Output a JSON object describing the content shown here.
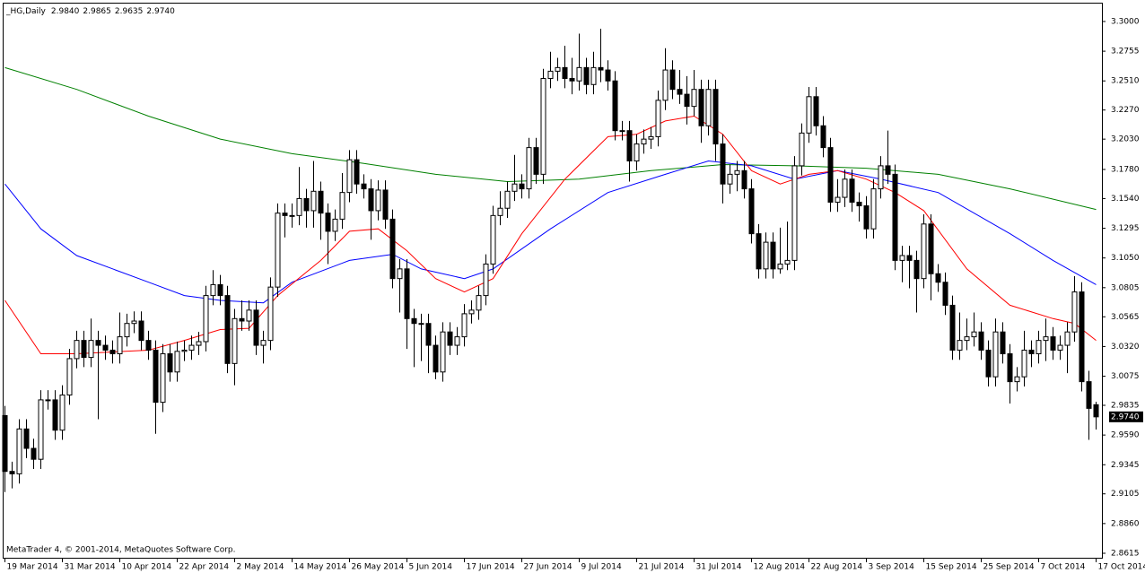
{
  "chart_data": {
    "type": "candlestick",
    "header": {
      "symbol": "_HG,Daily",
      "ohlc": [
        {
          "value": 2.984,
          "label": "2.9840"
        },
        {
          "value": 2.9865,
          "label": "2.9865"
        },
        {
          "value": 2.9635,
          "label": "2.9635"
        },
        {
          "value": 2.974,
          "label": "2.9740"
        }
      ]
    },
    "footer": "MetaTrader 4, © 2001-2014, MetaQuotes Software Corp.",
    "last_price": {
      "value": 2.974,
      "label": "2.9740"
    },
    "ylim": [
      2.8578,
      3.3155
    ],
    "yticks": [
      {
        "value": 3.3,
        "label": "3.3000"
      },
      {
        "value": 3.2755,
        "label": "3.2755"
      },
      {
        "value": 3.251,
        "label": "3.2510"
      },
      {
        "value": 3.227,
        "label": "3.2270"
      },
      {
        "value": 3.203,
        "label": "3.2030"
      },
      {
        "value": 3.178,
        "label": "3.1780"
      },
      {
        "value": 3.154,
        "label": "3.1540"
      },
      {
        "value": 3.1295,
        "label": "3.1295"
      },
      {
        "value": 3.105,
        "label": "3.1050"
      },
      {
        "value": 3.0805,
        "label": "3.0805"
      },
      {
        "value": 3.0565,
        "label": "3.0565"
      },
      {
        "value": 3.032,
        "label": "3.0320"
      },
      {
        "value": 3.0075,
        "label": "3.0075"
      },
      {
        "value": 2.9835,
        "label": "2.9835"
      },
      {
        "value": 2.959,
        "label": "2.9590"
      },
      {
        "value": 2.9345,
        "label": "2.9345"
      },
      {
        "value": 2.9105,
        "label": "2.9105"
      },
      {
        "value": 2.886,
        "label": "2.8860"
      },
      {
        "value": 2.8615,
        "label": "2.8615"
      }
    ],
    "up_color": "#ffffff",
    "down_color": "#000000",
    "outline_color": "#000000",
    "categories": [
      "19 Mar 2014",
      null,
      null,
      null,
      null,
      null,
      null,
      null,
      "31 Mar 2014",
      null,
      null,
      null,
      null,
      null,
      null,
      null,
      "10 Apr 2014",
      null,
      null,
      null,
      null,
      null,
      null,
      null,
      "22 Apr 2014",
      null,
      null,
      null,
      null,
      null,
      null,
      null,
      "2 May 2014",
      null,
      null,
      null,
      null,
      null,
      null,
      null,
      "14 May 2014",
      null,
      null,
      null,
      null,
      null,
      null,
      null,
      "26 May 2014",
      null,
      null,
      null,
      null,
      null,
      null,
      null,
      "5 Jun 2014",
      null,
      null,
      null,
      null,
      null,
      null,
      null,
      "17 Jun 2014",
      null,
      null,
      null,
      null,
      null,
      null,
      null,
      "27 Jun 2014",
      null,
      null,
      null,
      null,
      null,
      null,
      null,
      "9 Jul 2014",
      null,
      null,
      null,
      null,
      null,
      null,
      null,
      "21 Jul 2014",
      null,
      null,
      null,
      null,
      null,
      null,
      null,
      "31 Jul 2014",
      null,
      null,
      null,
      null,
      null,
      null,
      null,
      "12 Aug 2014",
      null,
      null,
      null,
      null,
      null,
      null,
      null,
      "22 Aug 2014",
      null,
      null,
      null,
      null,
      null,
      null,
      null,
      "3 Sep 2014",
      null,
      null,
      null,
      null,
      null,
      null,
      null,
      "15 Sep 2014",
      null,
      null,
      null,
      null,
      null,
      null,
      null,
      "25 Sep 2014",
      null,
      null,
      null,
      null,
      null,
      null,
      null,
      "7 Oct 2014",
      null,
      null,
      null,
      null,
      null,
      null,
      null,
      "17 Oct 2014"
    ],
    "open": [
      2.975,
      2.929,
      2.927,
      2.964,
      2.948,
      2.939,
      2.988,
      2.988,
      2.963,
      2.992,
      3.022,
      3.037,
      3.023,
      3.037,
      3.033,
      3.029,
      3.026,
      3.04,
      3.051,
      3.053,
      3.037,
      3.029,
      2.986,
      3.026,
      3.011,
      3.028,
      3.029,
      3.033,
      3.036,
      3.074,
      3.083,
      3.074,
      3.018,
      3.055,
      3.053,
      3.062,
      3.033,
      3.037,
      3.081,
      3.142,
      3.14,
      3.14,
      3.154,
      3.144,
      3.16,
      3.142,
      3.127,
      3.137,
      3.159,
      3.186,
      3.166,
      3.162,
      3.144,
      3.161,
      3.137,
      3.088,
      3.096,
      3.055,
      3.051,
      3.051,
      3.033,
      3.011,
      3.044,
      3.033,
      3.04,
      3.059,
      3.062,
      3.074,
      3.1,
      3.14,
      3.146,
      3.16,
      3.166,
      3.162,
      3.196,
      3.174,
      3.253,
      3.259,
      3.262,
      3.253,
      3.251,
      3.262,
      3.248,
      3.262,
      3.26,
      3.251,
      3.21,
      3.21,
      3.185,
      3.199,
      3.203,
      3.205,
      3.235,
      3.26,
      3.244,
      3.24,
      3.23,
      3.244,
      3.214,
      3.244,
      3.199,
      3.166,
      3.174,
      3.177,
      3.162,
      3.125,
      3.096,
      3.118,
      3.096,
      3.1,
      3.103,
      3.181,
      3.208,
      3.238,
      3.214,
      3.196,
      3.151,
      3.155,
      3.17,
      3.151,
      3.148,
      3.129,
      3.162,
      3.181,
      3.174,
      3.103,
      3.107,
      3.103,
      3.088,
      3.133,
      3.092,
      3.085,
      3.066,
      3.029,
      3.037,
      3.04,
      3.044,
      3.029,
      3.007,
      3.044,
      3.026,
      3.003,
      3.007,
      3.029,
      3.026,
      3.037,
      3.04,
      3.029,
      3.033,
      3.044,
      3.077,
      3.003,
      2.984
    ],
    "high": [
      2.983,
      2.937,
      2.972,
      2.972,
      2.956,
      2.996,
      2.996,
      2.996,
      3.0,
      3.03,
      3.045,
      3.045,
      3.055,
      3.045,
      3.041,
      3.037,
      3.06,
      3.059,
      3.061,
      3.061,
      3.045,
      3.037,
      3.034,
      3.034,
      3.036,
      3.037,
      3.041,
      3.044,
      3.082,
      3.095,
      3.091,
      3.082,
      3.063,
      3.07,
      3.07,
      3.07,
      3.045,
      3.089,
      3.15,
      3.15,
      3.15,
      3.18,
      3.162,
      3.185,
      3.168,
      3.15,
      3.145,
      3.175,
      3.194,
      3.194,
      3.174,
      3.17,
      3.169,
      3.169,
      3.145,
      3.104,
      3.104,
      3.063,
      3.059,
      3.059,
      3.041,
      3.052,
      3.052,
      3.048,
      3.067,
      3.07,
      3.082,
      3.108,
      3.148,
      3.16,
      3.168,
      3.19,
      3.174,
      3.204,
      3.204,
      3.261,
      3.275,
      3.27,
      3.28,
      3.27,
      3.29,
      3.27,
      3.275,
      3.294,
      3.268,
      3.259,
      3.218,
      3.218,
      3.207,
      3.211,
      3.213,
      3.243,
      3.278,
      3.268,
      3.26,
      3.255,
      3.26,
      3.252,
      3.252,
      3.252,
      3.207,
      3.182,
      3.185,
      3.185,
      3.17,
      3.133,
      3.126,
      3.126,
      3.13,
      3.135,
      3.189,
      3.216,
      3.246,
      3.246,
      3.222,
      3.204,
      3.17,
      3.178,
      3.178,
      3.159,
      3.156,
      3.17,
      3.189,
      3.21,
      3.182,
      3.115,
      3.115,
      3.111,
      3.141,
      3.141,
      3.1,
      3.093,
      3.074,
      3.06,
      3.055,
      3.06,
      3.052,
      3.037,
      3.055,
      3.052,
      3.034,
      3.015,
      3.045,
      3.037,
      3.045,
      3.055,
      3.048,
      3.041,
      3.052,
      3.09,
      3.085,
      3.012,
      2.9865
    ],
    "low": [
      2.912,
      2.915,
      2.919,
      2.94,
      2.931,
      2.931,
      2.98,
      2.955,
      2.955,
      2.984,
      3.014,
      3.015,
      3.015,
      2.972,
      3.021,
      3.018,
      3.018,
      3.032,
      3.043,
      3.029,
      3.021,
      2.96,
      2.978,
      3.003,
      3.003,
      3.02,
      3.021,
      3.025,
      3.028,
      3.066,
      3.066,
      3.01,
      3.0,
      3.045,
      3.045,
      3.025,
      3.018,
      3.029,
      3.073,
      3.122,
      3.13,
      3.132,
      3.13,
      3.13,
      3.12,
      3.1,
      3.119,
      3.129,
      3.151,
      3.158,
      3.154,
      3.12,
      3.136,
      3.129,
      3.08,
      3.06,
      3.03,
      3.015,
      3.02,
      3.01,
      3.005,
      3.003,
      3.025,
      3.025,
      3.032,
      3.051,
      3.054,
      3.066,
      3.092,
      3.132,
      3.138,
      3.152,
      3.154,
      3.154,
      3.166,
      3.166,
      3.245,
      3.251,
      3.245,
      3.24,
      3.243,
      3.24,
      3.24,
      3.25,
      3.243,
      3.202,
      3.202,
      3.168,
      3.177,
      3.191,
      3.195,
      3.197,
      3.227,
      3.236,
      3.232,
      3.215,
      3.222,
      3.2,
      3.206,
      3.185,
      3.15,
      3.158,
      3.16,
      3.154,
      3.117,
      3.088,
      3.088,
      3.088,
      3.092,
      3.095,
      3.095,
      3.173,
      3.2,
      3.206,
      3.188,
      3.143,
      3.143,
      3.147,
      3.143,
      3.135,
      3.121,
      3.121,
      3.154,
      3.166,
      3.095,
      3.085,
      3.08,
      3.06,
      3.08,
      3.07,
      3.077,
      3.058,
      3.021,
      3.021,
      3.029,
      3.032,
      3.021,
      2.999,
      2.999,
      3.018,
      2.985,
      2.995,
      2.999,
      3.015,
      3.018,
      3.02,
      3.021,
      3.021,
      3.01,
      3.036,
      2.995,
      2.955,
      2.9635
    ],
    "close": [
      2.929,
      2.927,
      2.964,
      2.948,
      2.939,
      2.988,
      2.988,
      2.963,
      2.992,
      3.022,
      3.037,
      3.023,
      3.037,
      3.033,
      3.029,
      3.026,
      3.04,
      3.051,
      3.053,
      3.037,
      3.029,
      2.986,
      3.026,
      3.011,
      3.028,
      3.029,
      3.033,
      3.036,
      3.074,
      3.083,
      3.074,
      3.018,
      3.055,
      3.053,
      3.062,
      3.033,
      3.037,
      3.081,
      3.142,
      3.14,
      3.14,
      3.154,
      3.144,
      3.16,
      3.142,
      3.127,
      3.137,
      3.159,
      3.186,
      3.166,
      3.162,
      3.144,
      3.161,
      3.137,
      3.088,
      3.096,
      3.055,
      3.051,
      3.051,
      3.033,
      3.011,
      3.044,
      3.033,
      3.04,
      3.059,
      3.062,
      3.074,
      3.1,
      3.14,
      3.146,
      3.16,
      3.166,
      3.162,
      3.196,
      3.174,
      3.253,
      3.259,
      3.262,
      3.253,
      3.251,
      3.262,
      3.248,
      3.262,
      3.26,
      3.251,
      3.21,
      3.21,
      3.185,
      3.199,
      3.203,
      3.205,
      3.235,
      3.26,
      3.244,
      3.24,
      3.23,
      3.244,
      3.214,
      3.244,
      3.199,
      3.166,
      3.174,
      3.177,
      3.162,
      3.125,
      3.096,
      3.118,
      3.096,
      3.1,
      3.103,
      3.181,
      3.208,
      3.238,
      3.214,
      3.196,
      3.151,
      3.155,
      3.17,
      3.151,
      3.148,
      3.129,
      3.162,
      3.181,
      3.174,
      3.103,
      3.107,
      3.103,
      3.088,
      3.133,
      3.092,
      3.085,
      3.066,
      3.029,
      3.037,
      3.04,
      3.044,
      3.029,
      3.007,
      3.044,
      3.026,
      3.003,
      3.007,
      3.029,
      3.026,
      3.037,
      3.04,
      3.029,
      3.033,
      3.044,
      3.077,
      3.003,
      2.981,
      2.974
    ],
    "lines": [
      {
        "color": "#008000",
        "x": [
          0,
          10,
          20,
          30,
          40,
          50,
          60,
          70,
          80,
          90,
          100,
          110,
          120,
          130,
          140,
          152
        ],
        "values": [
          3.262,
          3.244,
          3.222,
          3.203,
          3.191,
          3.183,
          3.174,
          3.168,
          3.17,
          3.177,
          3.182,
          3.181,
          3.179,
          3.174,
          3.162,
          3.145
        ]
      },
      {
        "color": "#0000ff",
        "x": [
          0,
          5,
          10,
          20,
          25,
          30,
          36,
          40,
          48,
          54,
          58,
          64,
          68,
          76,
          84,
          92,
          98,
          104,
          110,
          116,
          122,
          130,
          140,
          146,
          152
        ],
        "values": [
          3.166,
          3.129,
          3.107,
          3.085,
          3.074,
          3.07,
          3.068,
          3.085,
          3.103,
          3.108,
          3.096,
          3.088,
          3.096,
          3.129,
          3.159,
          3.174,
          3.185,
          3.181,
          3.17,
          3.177,
          3.17,
          3.159,
          3.125,
          3.103,
          3.083
        ]
      },
      {
        "color": "#ff0000",
        "x": [
          0,
          5,
          10,
          20,
          25,
          30,
          34,
          38,
          44,
          48,
          52,
          56,
          60,
          64,
          68,
          72,
          78,
          84,
          88,
          92,
          96,
          100,
          104,
          108,
          112,
          116,
          120,
          124,
          128,
          134,
          140,
          146,
          149,
          152
        ],
        "values": [
          3.07,
          3.026,
          3.026,
          3.029,
          3.037,
          3.046,
          3.047,
          3.074,
          3.103,
          3.127,
          3.129,
          3.111,
          3.088,
          3.077,
          3.088,
          3.125,
          3.17,
          3.205,
          3.207,
          3.218,
          3.222,
          3.207,
          3.177,
          3.166,
          3.174,
          3.177,
          3.17,
          3.159,
          3.144,
          3.096,
          3.066,
          3.055,
          3.051,
          3.037
        ]
      }
    ]
  }
}
